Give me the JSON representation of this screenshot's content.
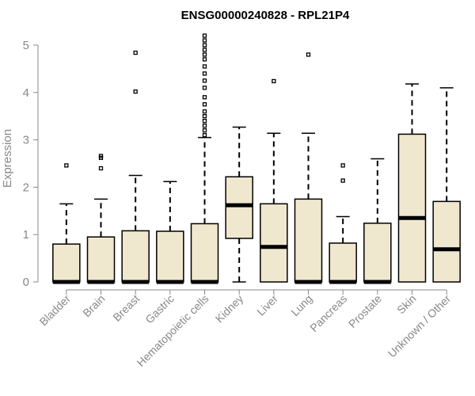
{
  "chart_data": {
    "type": "boxplot",
    "title": "ENSG00000240828 - RPL21P4",
    "xlabel": "",
    "ylabel": "Expression",
    "ylim": [
      0,
      5.2
    ],
    "yticks": [
      0,
      1,
      2,
      3,
      4,
      5
    ],
    "grid": false,
    "box_color": "#EFE8CF",
    "categories": [
      "Bladder",
      "Brain",
      "Breast",
      "Gastric",
      "Hematopoietic cells",
      "Kidney",
      "Liver",
      "Lung",
      "Pancreas",
      "Prostate",
      "Skin",
      "Unknown / Other"
    ],
    "series": [
      {
        "name": "Bladder",
        "min": 0,
        "q1": 0,
        "median": 0,
        "q3": 0.8,
        "max": 1.65,
        "outliers": [
          2.46
        ]
      },
      {
        "name": "Brain",
        "min": 0,
        "q1": 0,
        "median": 0,
        "q3": 0.95,
        "max": 1.75,
        "outliers": [
          2.4,
          2.62,
          2.66
        ]
      },
      {
        "name": "Breast",
        "min": 0,
        "q1": 0,
        "median": 0,
        "q3": 1.08,
        "max": 2.25,
        "outliers": [
          4.02,
          4.84
        ]
      },
      {
        "name": "Gastric",
        "min": 0,
        "q1": 0,
        "median": 0,
        "q3": 1.07,
        "max": 2.12,
        "outliers": []
      },
      {
        "name": "Hematopoietic cells",
        "min": 0,
        "q1": 0,
        "median": 0,
        "q3": 1.23,
        "max": 3.05,
        "outliers": [
          3.1,
          3.2,
          3.3,
          3.4,
          3.5,
          3.6,
          3.75,
          3.9,
          4.1,
          4.25,
          4.4,
          4.55,
          4.7,
          4.8,
          4.9,
          5.0,
          5.1,
          5.2
        ]
      },
      {
        "name": "Kidney",
        "min": 0,
        "q1": 0.92,
        "median": 1.62,
        "q3": 2.22,
        "max": 3.27,
        "outliers": []
      },
      {
        "name": "Liver",
        "min": 0,
        "q1": 0,
        "median": 0.74,
        "q3": 1.65,
        "max": 3.14,
        "outliers": [
          4.24
        ]
      },
      {
        "name": "Lung",
        "min": 0,
        "q1": 0,
        "median": 0,
        "q3": 1.75,
        "max": 3.14,
        "outliers": [
          4.8
        ]
      },
      {
        "name": "Pancreas",
        "min": 0,
        "q1": 0,
        "median": 0,
        "q3": 0.82,
        "max": 1.38,
        "outliers": [
          2.14,
          2.46
        ]
      },
      {
        "name": "Prostate",
        "min": 0,
        "q1": 0,
        "median": 0,
        "q3": 1.24,
        "max": 2.6,
        "outliers": []
      },
      {
        "name": "Skin",
        "min": 0,
        "q1": 0,
        "median": 1.35,
        "q3": 3.12,
        "max": 4.18,
        "outliers": []
      },
      {
        "name": "Unknown / Other",
        "min": 0,
        "q1": 0,
        "median": 0.69,
        "q3": 1.7,
        "max": 4.1,
        "outliers": []
      }
    ]
  }
}
